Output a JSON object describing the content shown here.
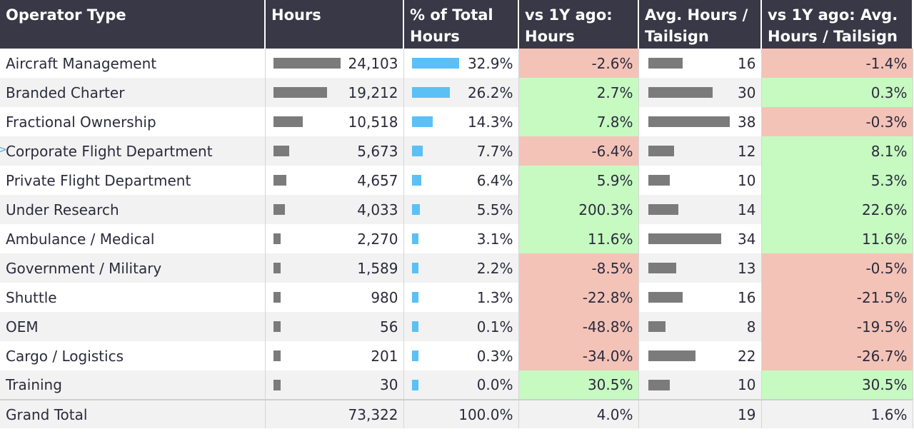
{
  "headers": [
    "Operator Type",
    "Hours",
    "% of Total Hours",
    "vs 1Y ago: Hours",
    "Avg. Hours / Tailsign",
    "vs 1Y ago: Avg. Hours / Tailsign"
  ],
  "colors": {
    "header_bg": "#383846",
    "positive": "#c6fac1",
    "negative": "#f4c3b8",
    "hours_bar": "#7b7b7b",
    "pct_bar": "#5bc0f5"
  },
  "rows": [
    {
      "type": "Aircraft Management",
      "hours": "24,103",
      "pct": "32.9%",
      "vs_hours": "-2.6%",
      "avg": "16",
      "vs_avg": "-1.4%"
    },
    {
      "type": "Branded Charter",
      "hours": "19,212",
      "pct": "26.2%",
      "vs_hours": "2.7%",
      "avg": "30",
      "vs_avg": "0.3%"
    },
    {
      "type": "Fractional Ownership",
      "hours": "10,518",
      "pct": "14.3%",
      "vs_hours": "7.8%",
      "avg": "38",
      "vs_avg": "-0.3%"
    },
    {
      "type": "Corporate Flight Department",
      "hours": "5,673",
      "pct": "7.7%",
      "vs_hours": "-6.4%",
      "avg": "12",
      "vs_avg": "8.1%"
    },
    {
      "type": "Private Flight Department",
      "hours": "4,657",
      "pct": "6.4%",
      "vs_hours": "5.9%",
      "avg": "10",
      "vs_avg": "5.3%"
    },
    {
      "type": "Under Research",
      "hours": "4,033",
      "pct": "5.5%",
      "vs_hours": "200.3%",
      "avg": "14",
      "vs_avg": "22.6%"
    },
    {
      "type": "Ambulance / Medical",
      "hours": "2,270",
      "pct": "3.1%",
      "vs_hours": "11.6%",
      "avg": "34",
      "vs_avg": "11.6%"
    },
    {
      "type": "Government / Military",
      "hours": "1,589",
      "pct": "2.2%",
      "vs_hours": "-8.5%",
      "avg": "13",
      "vs_avg": "-0.5%"
    },
    {
      "type": "Shuttle",
      "hours": "980",
      "pct": "1.3%",
      "vs_hours": "-22.8%",
      "avg": "16",
      "vs_avg": "-21.5%"
    },
    {
      "type": "OEM",
      "hours": "56",
      "pct": "0.1%",
      "vs_hours": "-48.8%",
      "avg": "8",
      "vs_avg": "-19.5%"
    },
    {
      "type": "Cargo / Logistics",
      "hours": "201",
      "pct": "0.3%",
      "vs_hours": "-34.0%",
      "avg": "22",
      "vs_avg": "-26.7%"
    },
    {
      "type": "Training",
      "hours": "30",
      "pct": "0.0%",
      "vs_hours": "30.5%",
      "avg": "10",
      "vs_avg": "30.5%"
    }
  ],
  "total": {
    "type": "Grand Total",
    "hours": "73,322",
    "pct": "100.0%",
    "vs_hours": "4.0%",
    "avg": "19",
    "vs_avg": "1.6%"
  }
}
